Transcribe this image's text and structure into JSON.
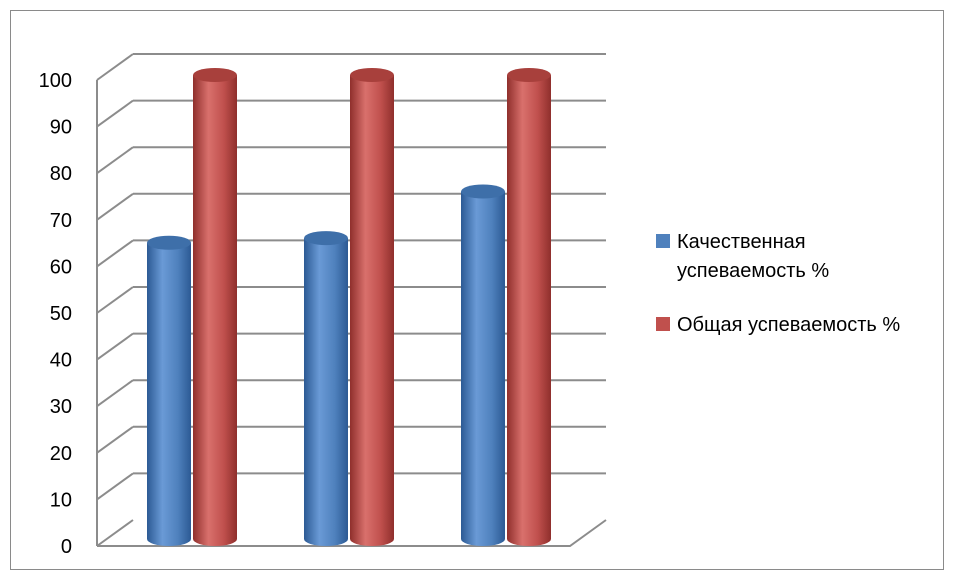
{
  "chart_data": {
    "type": "bar",
    "title": "",
    "xlabel": "",
    "ylabel": "",
    "categories": [
      "",
      "",
      ""
    ],
    "ylim": [
      0,
      100
    ],
    "yticks": [
      0,
      10,
      20,
      30,
      40,
      50,
      60,
      70,
      80,
      90,
      100
    ],
    "grid": true,
    "legend_position": "right",
    "series": [
      {
        "name": "Качественная успеваемость  %",
        "name_lines": [
          "Качественная",
          "успеваемость  %"
        ],
        "color": "#4f81bd",
        "values": [
          64,
          65,
          75
        ]
      },
      {
        "name": "Общая успеваемость %",
        "name_lines": [
          "Общая успеваемость %"
        ],
        "color": "#c0504d",
        "values": [
          100,
          100,
          100
        ]
      }
    ]
  }
}
